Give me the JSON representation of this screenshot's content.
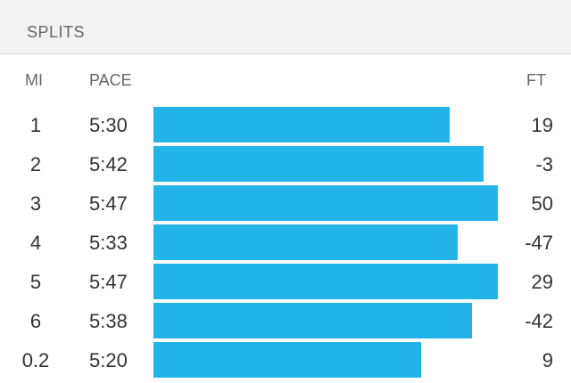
{
  "header": {
    "title": "SPLITS"
  },
  "columns": {
    "mi": "MI",
    "pace": "PACE",
    "ft": "FT"
  },
  "colors": {
    "bar": "#22b4e8"
  },
  "splits": [
    {
      "mi": "1",
      "pace": "5:30",
      "ft": "19"
    },
    {
      "mi": "2",
      "pace": "5:42",
      "ft": "-3"
    },
    {
      "mi": "3",
      "pace": "5:47",
      "ft": "50"
    },
    {
      "mi": "4",
      "pace": "5:33",
      "ft": "-47"
    },
    {
      "mi": "5",
      "pace": "5:47",
      "ft": "29"
    },
    {
      "mi": "6",
      "pace": "5:38",
      "ft": "-42"
    },
    {
      "mi": "0.2",
      "pace": "5:20",
      "ft": "9"
    }
  ]
}
